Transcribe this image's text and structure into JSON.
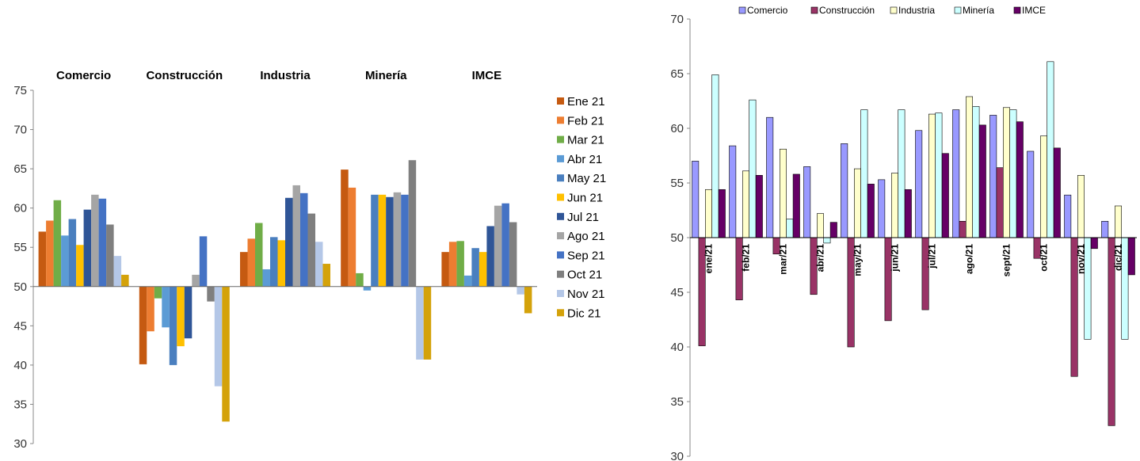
{
  "chart_data": [
    {
      "type": "bar",
      "categories": [
        "Comercio",
        "Construcción",
        "Industria",
        "Minería",
        "IMCE"
      ],
      "ylim": [
        30,
        75
      ],
      "yticks": [
        30,
        35,
        40,
        45,
        50,
        55,
        60,
        65,
        70,
        75
      ],
      "baseline": 50,
      "legend_position": "right",
      "series": [
        {
          "name": "Ene 21",
          "color": "#c55a11",
          "values": [
            57.0,
            40.1,
            54.4,
            64.9,
            54.4
          ]
        },
        {
          "name": "Feb 21",
          "color": "#ed7d31",
          "values": [
            58.4,
            44.3,
            56.1,
            62.6,
            55.7
          ]
        },
        {
          "name": "Mar 21",
          "color": "#70ad47",
          "values": [
            61.0,
            48.5,
            58.1,
            51.7,
            55.8
          ]
        },
        {
          "name": "Abr 21",
          "color": "#5b9bd5",
          "values": [
            56.5,
            44.8,
            52.2,
            49.5,
            51.4
          ]
        },
        {
          "name": "May 21",
          "color": "#4a7fbf",
          "values": [
            58.6,
            40.0,
            56.3,
            61.7,
            54.9
          ]
        },
        {
          "name": "Jun 21",
          "color": "#ffc000",
          "values": [
            55.3,
            42.4,
            55.9,
            61.7,
            54.4
          ]
        },
        {
          "name": "Jul 21",
          "color": "#2f5597",
          "values": [
            59.8,
            43.4,
            61.3,
            61.4,
            57.7
          ]
        },
        {
          "name": "Ago 21",
          "color": "#a5a5a5",
          "values": [
            61.7,
            51.5,
            62.9,
            62.0,
            60.3
          ]
        },
        {
          "name": "Sep 21",
          "color": "#4472c4",
          "values": [
            61.2,
            56.4,
            61.9,
            61.7,
            60.6
          ]
        },
        {
          "name": "Oct 21",
          "color": "#7f7f7f",
          "values": [
            57.9,
            48.1,
            59.3,
            66.1,
            58.2
          ]
        },
        {
          "name": "Nov 21",
          "color": "#b4c7e7",
          "values": [
            53.9,
            37.3,
            55.7,
            40.7,
            49.0
          ]
        },
        {
          "name": "Dic 21",
          "color": "#d4a20a",
          "values": [
            51.5,
            32.8,
            52.9,
            40.7,
            46.6
          ]
        }
      ]
    },
    {
      "type": "bar",
      "categories": [
        "ene/21",
        "feb/21",
        "mar/21",
        "abr/21",
        "may/21",
        "jun/21",
        "jul/21",
        "ago/21",
        "sept/21",
        "oct/21",
        "nov/21",
        "dic/21"
      ],
      "ylim": [
        30,
        70
      ],
      "yticks": [
        30,
        35,
        40,
        45,
        50,
        55,
        60,
        65,
        70
      ],
      "baseline": 50,
      "legend_position": "top",
      "series": [
        {
          "name": "Comercio",
          "color": "#9999ff",
          "values": [
            57.0,
            58.4,
            61.0,
            56.5,
            58.6,
            55.3,
            59.8,
            61.7,
            61.2,
            57.9,
            53.9,
            51.5
          ]
        },
        {
          "name": "Construcción",
          "color": "#993366",
          "values": [
            40.1,
            44.3,
            48.5,
            44.8,
            40.0,
            42.4,
            43.4,
            51.5,
            56.4,
            48.1,
            37.3,
            32.8
          ]
        },
        {
          "name": "Industria",
          "color": "#ffffcc",
          "values": [
            54.4,
            56.1,
            58.1,
            52.2,
            56.3,
            55.9,
            61.3,
            62.9,
            61.9,
            59.3,
            55.7,
            52.9
          ]
        },
        {
          "name": "Minería",
          "color": "#ccffff",
          "values": [
            64.9,
            62.6,
            51.7,
            49.5,
            61.7,
            61.7,
            61.4,
            62.0,
            61.7,
            66.1,
            40.7,
            40.7
          ]
        },
        {
          "name": "IMCE",
          "color": "#660066",
          "values": [
            54.4,
            55.7,
            55.8,
            51.4,
            54.9,
            54.4,
            57.7,
            60.3,
            60.6,
            58.2,
            49.0,
            46.6
          ]
        }
      ]
    }
  ]
}
